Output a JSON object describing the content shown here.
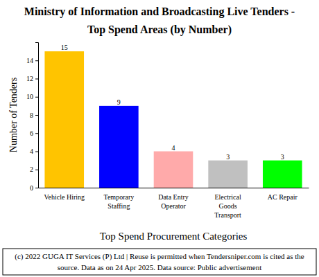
{
  "chart_data": {
    "type": "bar",
    "title": [
      "Ministry of Information and Broadcasting  Live Tenders -",
      "Top Spend Areas (by Number)"
    ],
    "x_label": "Top Spend Procurement Categories",
    "y_label": "Number of Tenders",
    "categories": [
      "Vehicle Hiring",
      "Temporary Staffing",
      "Data Entry Operator",
      "Electrical Goods Transport",
      "AC Repair"
    ],
    "values": [
      15,
      9,
      4,
      3,
      3
    ],
    "colors": [
      "#ffc400",
      "#0000ff",
      "#ffaaaa",
      "#c0c0c0",
      "#00ff00"
    ],
    "ylim": [
      0,
      16
    ],
    "yticks": [
      0,
      2,
      4,
      6,
      8,
      10,
      12,
      14
    ],
    "grid": false,
    "data_labels": true,
    "footer": [
      "(c) 2022 GUGA IT Services (P) Ltd | Reuse is permitted when Tendersniper.com is cited as the",
      "source. Data as on 24 Apr 2025. Data source: Public advertisement"
    ]
  }
}
